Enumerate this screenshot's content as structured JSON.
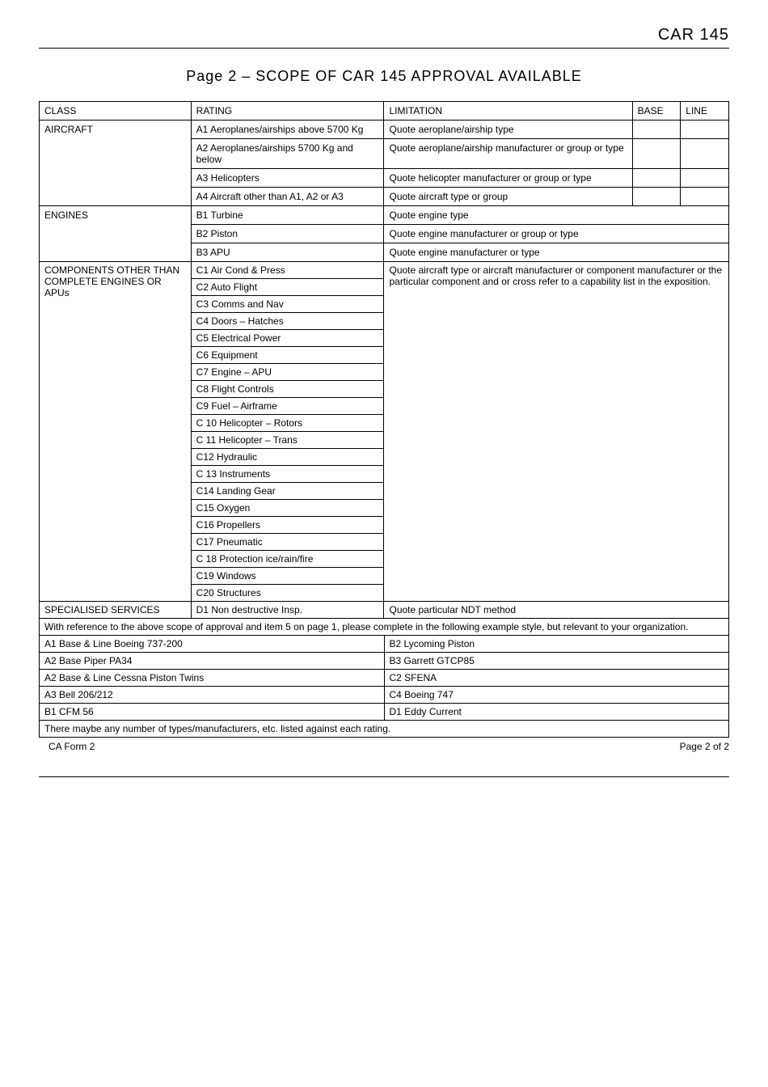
{
  "header": {
    "code": "CAR 145"
  },
  "title": "Page 2 – SCOPE OF CAR 145 APPROVAL  AVAILABLE",
  "cols": {
    "class": "CLASS",
    "rating": "RATING",
    "limitation": "LIMITATION",
    "base": "BASE",
    "line": "LINE"
  },
  "aircraft": {
    "label": "AIRCRAFT",
    "rows": [
      {
        "rating": "A1 Aeroplanes/airships above 5700 Kg",
        "limitation": "Quote aeroplane/airship type"
      },
      {
        "rating": "A2 Aeroplanes/airships 5700 Kg and below",
        "limitation": "Quote aeroplane/airship manufacturer or group or type"
      },
      {
        "rating": "A3 Helicopters",
        "limitation": "Quote helicopter manufacturer or group or type"
      },
      {
        "rating": "A4  Aircraft other than A1, A2 or A3",
        "limitation": "Quote aircraft type or group"
      }
    ]
  },
  "engines": {
    "label": "ENGINES",
    "rows": [
      {
        "rating": "B1 Turbine",
        "limitation": "Quote engine type"
      },
      {
        "rating": "B2 Piston",
        "limitation": "Quote engine manufacturer or group or type"
      },
      {
        "rating": "B3 APU",
        "limitation": "Quote engine manufacturer or type"
      }
    ]
  },
  "components": {
    "label": "COMPONENTS OTHER THAN COMPLETE ENGINES OR APUs",
    "limitation": "Quote aircraft type or aircraft manufacturer or component manufacturer or the particular component and or cross refer to a capability list in the exposition.",
    "ratings": [
      "C1 Air Cond & Press",
      "C2 Auto Flight",
      "C3 Comms and Nav",
      "C4 Doors – Hatches",
      "C5 Electrical Power",
      "C6 Equipment",
      "C7 Engine – APU",
      "C8 Flight Controls",
      "C9 Fuel – Airframe",
      "C 10 Helicopter – Rotors",
      "C 11 Helicopter – Trans",
      "C12 Hydraulic",
      "C 13 Instruments",
      "C14 Landing Gear",
      "C15 Oxygen",
      "C16 Propellers",
      "C17 Pneumatic",
      "C 18 Protection ice/rain/fire",
      "C19 Windows",
      "C20 Structures"
    ]
  },
  "specialised": {
    "label": "SPECIALISED SERVICES",
    "rating": "D1 Non destructive Insp.",
    "limitation": "Quote particular NDT method"
  },
  "note": "With reference to the above scope of approval and item 5 on page 1, please complete in the following example style, but relevant to your organization.",
  "examples": [
    {
      "left": "A1 Base & Line Boeing 737-200",
      "right": "B2 Lycoming Piston"
    },
    {
      "left": "A2 Base Piper PA34",
      "right": "B3 Garrett GTCP85"
    },
    {
      "left": "A2 Base & Line Cessna Piston Twins",
      "right": "C2 SFENA"
    },
    {
      "left": "A3 Bell 206/212",
      "right": "C4 Boeing 747"
    },
    {
      "left": "B1 CFM 56",
      "right": "D1 Eddy Current"
    }
  ],
  "closing": "There maybe any number of types/manufacturers, etc. listed against each rating.",
  "footer": {
    "left": "CA Form 2",
    "right": "Page 2 of 2"
  }
}
